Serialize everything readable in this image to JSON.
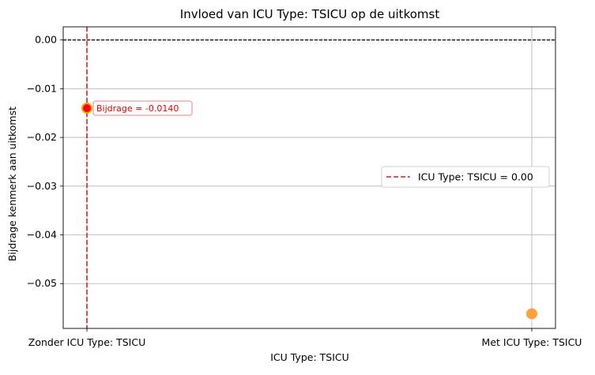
{
  "chart_data": {
    "type": "scatter",
    "title": "Invloed van ICU Type: TSICU op de uitkomst",
    "xlabel": "ICU Type: TSICU",
    "ylabel": "Bijdrage kenmerk aan uitkomst",
    "categories": [
      "Zonder ICU Type: TSICU",
      "Met ICU Type: TSICU"
    ],
    "points": [
      {
        "category": "Zonder ICU Type: TSICU",
        "value": -0.014,
        "color": "#ff0000",
        "edge_color": "#ffa500"
      },
      {
        "category": "Met ICU Type: TSICU",
        "value": -0.0562,
        "color": "#ffa040",
        "edge_color": "#ffa040"
      }
    ],
    "ylim": [
      -0.0592,
      0.0027
    ],
    "yticks": [
      0.0,
      -0.01,
      -0.02,
      -0.03,
      -0.04,
      -0.05
    ],
    "ytick_labels": [
      "0.00",
      "−0.01",
      "−0.02",
      "−0.03",
      "−0.04",
      "−0.05"
    ],
    "grid": true,
    "reference_hline": {
      "value": 0.0,
      "color": "#000000",
      "style": "dashed"
    },
    "reference_vline": {
      "category_value": 0.0,
      "color": "#e41a1c",
      "style": "dashed"
    },
    "annotation": {
      "text": "Bijdrage = -0.0140",
      "color": "#e00000",
      "category": "Zonder ICU Type: TSICU",
      "value": -0.014
    },
    "legend": {
      "label": "ICU Type: TSICU = 0.00",
      "placement": "center-right"
    }
  }
}
